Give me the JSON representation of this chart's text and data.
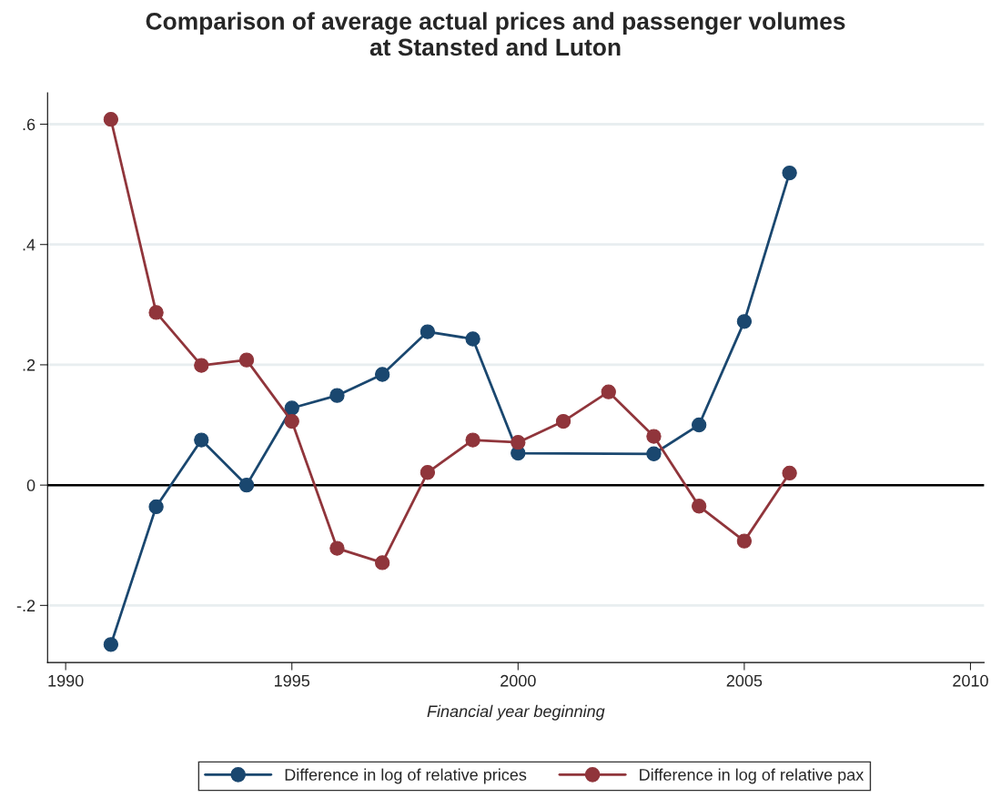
{
  "chart_data": {
    "type": "line",
    "title": "Comparison of average actual prices and passenger volumes\nat Stansted and Luton",
    "xlabel": "Financial year beginning",
    "series": [
      {
        "name": "Difference in log of relative prices",
        "color": "#1a476f",
        "x": [
          1991,
          1992,
          1993,
          1994,
          1995,
          1996,
          1997,
          1998,
          1999,
          2000,
          2003,
          2004,
          2005,
          2006
        ],
        "values": [
          -0.265,
          -0.036,
          0.075,
          0.0,
          0.128,
          0.149,
          0.184,
          0.255,
          0.243,
          0.053,
          0.052,
          0.1,
          0.272,
          0.519
        ]
      },
      {
        "name": "Difference in log of relative pax",
        "color": "#90353b",
        "x": [
          1991,
          1992,
          1993,
          1994,
          1995,
          1996,
          1997,
          1998,
          1999,
          2000,
          2001,
          2002,
          2003,
          2004,
          2005,
          2006
        ],
        "values": [
          0.608,
          0.287,
          0.199,
          0.208,
          0.106,
          -0.105,
          -0.129,
          0.021,
          0.075,
          0.071,
          0.106,
          0.155,
          0.081,
          -0.035,
          -0.093,
          0.02
        ]
      }
    ],
    "xlim": [
      1989.6,
      2010.3
    ],
    "xticks": [
      1990,
      1995,
      2000,
      2005,
      2010
    ],
    "ylim": [
      -0.295,
      0.652
    ],
    "yticks": [
      {
        "value": -0.2,
        "label": "-.2"
      },
      0,
      {
        "value": 0.2,
        "label": ".2"
      },
      {
        "value": 0.4,
        "label": ".4"
      },
      {
        "value": 0.6,
        "label": ".6"
      }
    ],
    "ref_lines": [
      {
        "axis": "y",
        "value": 0,
        "color": "#000000"
      }
    ],
    "grid": "y",
    "legend": "bottom",
    "marker": "circle",
    "line_style": "solid"
  }
}
